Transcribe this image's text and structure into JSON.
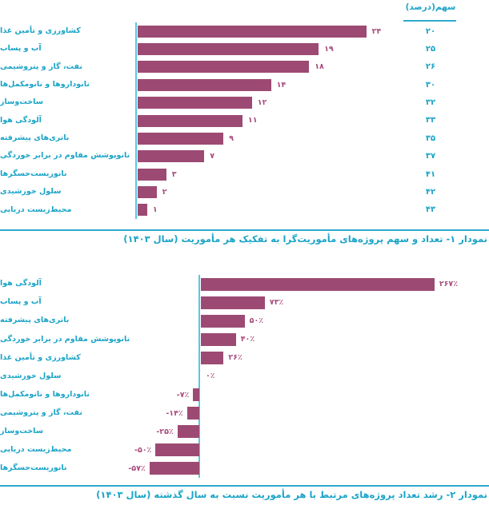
{
  "colors": {
    "bar": "#9c4a73",
    "value_label": "#a84c7d",
    "teal_text": "#1ba4c8",
    "axis_line": "#5cc6e2",
    "divider": "#2fa9cd",
    "background": "#ffffff"
  },
  "chart_data": [
    {
      "type": "bar",
      "orientation": "horizontal",
      "caption": "نمودار ۱- تعداد و سهم پروژه‌های مأموریت‌گرا به تفکیک هر مأموریت (سال ۱۴۰۳)",
      "share_header": "سهم(درصد)",
      "categories": [
        "کشاورزی و تأمین غذا",
        "آب و پساب",
        "نفت، گاز و پتروشیمی",
        "نانوداروها و نانومکمل‌ها",
        "ساخت‌وساز",
        "آلودگی هوا",
        "باتری‌های پیشرفته",
        "نانوپوشش مقاوم در برابر خوردگی",
        "نانوزیست‌حسگرها",
        "سلول خورشیدی",
        "محیط‌زیست دریایی"
      ],
      "values": [
        24,
        19,
        18,
        14,
        12,
        11,
        9,
        7,
        3,
        2,
        1
      ],
      "value_labels": [
        "۲۴",
        "۱۹",
        "۱۸",
        "۱۴",
        "۱۲",
        "۱۱",
        "۹",
        "۷",
        "۳",
        "۲",
        "۱"
      ],
      "shares": [
        20,
        25,
        26,
        30,
        32,
        33,
        35,
        37,
        41,
        42,
        43
      ],
      "share_labels": [
        "۲۰",
        "۲۵",
        "۲۶",
        "۳۰",
        "۳۲",
        "۳۳",
        "۳۵",
        "۳۷",
        "۴۱",
        "۴۲",
        "۴۳"
      ],
      "xlim": [
        0,
        25
      ],
      "grid": false,
      "legend": false
    },
    {
      "type": "bar",
      "orientation": "horizontal",
      "caption": "نمودار ۲- رشد تعداد پروژه‌های مرتبط با هر مأموریت نسبت به سال گذشته (سال ۱۴۰۳)",
      "categories": [
        "آلودگی هوا",
        "آب و پساب",
        "باتری‌های پیشرفته",
        "نانوپوشش مقاوم در برابر خوردگی",
        "کشاورزی و تأمین غذا",
        "سلول خورشیدی",
        "نانوداروها و نانومکمل‌ها",
        "نفت، گاز و پتروشیمی",
        "ساخت‌وساز",
        "محیط‌زیست دریایی",
        "نانوزیست‌حسگرها"
      ],
      "values": [
        267,
        73,
        50,
        40,
        26,
        0,
        -7,
        -14,
        -25,
        -50,
        -57
      ],
      "value_labels": [
        "۲۶۷٪",
        "۷۳٪",
        "۵۰٪",
        "۴۰٪",
        "۲۶٪",
        "۰٪",
        "-۷٪",
        "-۱۴٪",
        "-۲۵٪",
        "-۵۰٪",
        "-۵۷٪"
      ],
      "xlim": [
        -60,
        270
      ],
      "grid": false,
      "legend": false
    }
  ]
}
